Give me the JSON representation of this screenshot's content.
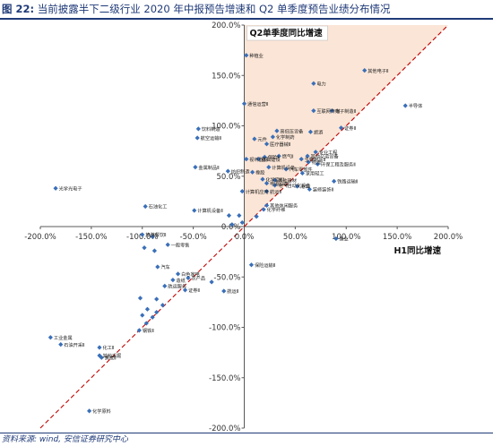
{
  "figure": {
    "number": "图 22:",
    "title": "当前披露半下二级行业 2020 年中报预告增速和 Q2 单季度预告业绩分布情况"
  },
  "source": "资料来源: wind, 安信证券研究中心",
  "colors": {
    "title": "#1f3a78",
    "points": "#3a6fb8",
    "diagonal": "#c00000",
    "shade": "#fbe5d6",
    "axis": "#595959",
    "tick_text": "#333333"
  },
  "chart_data": {
    "type": "scatter",
    "xlabel": "H1同比增速",
    "ylabel": "Q2单季度同比增速",
    "xlim": [
      -2.0,
      2.0
    ],
    "ylim": [
      -2.0,
      2.0
    ],
    "x_ticks": [
      "-200.0%",
      "-150.0%",
      "-100.0%",
      "-50.0%",
      "0.0%",
      "50.0%",
      "100.0%",
      "150.0%",
      "200.0%"
    ],
    "y_ticks": [
      "200.0%",
      "150.0%",
      "100.0%",
      "50.0%",
      "0.0%",
      "-50.0%",
      "-100.0%",
      "-150.0%",
      "-200.0%"
    ],
    "grid": false,
    "diagonal_reference_line": true,
    "shaded_region": "upper-left of diagonal, x ≥ 0",
    "series": [
      {
        "points": [
          {
            "x": 0.02,
            "y": 1.7,
            "label": "种植业"
          },
          {
            "x": 1.18,
            "y": 1.55,
            "label": "其他电子Ⅱ"
          },
          {
            "x": 0.68,
            "y": 1.42,
            "label": "电力"
          },
          {
            "x": 1.58,
            "y": 1.2,
            "label": "半导体"
          },
          {
            "x": 0.0,
            "y": 1.22,
            "label": "通信运营Ⅱ"
          },
          {
            "x": 0.68,
            "y": 1.15,
            "label": "互联网传媒"
          },
          {
            "x": 0.86,
            "y": 1.15,
            "label": "电子制造Ⅱ"
          },
          {
            "x": 0.95,
            "y": 0.98,
            "label": "证券Ⅱ"
          },
          {
            "x": -0.45,
            "y": 0.97,
            "label": "饮料制造"
          },
          {
            "x": 0.32,
            "y": 0.95,
            "label": "高低压设备"
          },
          {
            "x": 0.65,
            "y": 0.94,
            "label": "旅游"
          },
          {
            "x": 0.28,
            "y": 0.89,
            "label": "化学制药"
          },
          {
            "x": -0.46,
            "y": 0.88,
            "label": "航空运输Ⅱ"
          },
          {
            "x": 0.1,
            "y": 0.87,
            "label": "元件"
          },
          {
            "x": 0.22,
            "y": 0.82,
            "label": "医疗器械Ⅱ"
          },
          {
            "x": 0.7,
            "y": 0.74,
            "label": "专业工程"
          },
          {
            "x": 0.34,
            "y": 0.7,
            "label": "燃气Ⅱ"
          },
          {
            "x": 0.62,
            "y": 0.7,
            "label": "其他交运设备"
          },
          {
            "x": 0.2,
            "y": 0.69,
            "label": "保险Ⅱ"
          },
          {
            "x": 0.02,
            "y": 0.67,
            "label": "视听器材"
          },
          {
            "x": 0.14,
            "y": 0.67,
            "label": "基础建设"
          },
          {
            "x": 0.56,
            "y": 0.67,
            "label": "生物制品Ⅱ"
          },
          {
            "x": 0.63,
            "y": 0.64,
            "label": "物流"
          },
          {
            "x": 0.72,
            "y": 0.62,
            "label": "环保工程及服务Ⅱ"
          },
          {
            "x": 0.24,
            "y": 0.59,
            "label": "计算机设备"
          },
          {
            "x": -0.48,
            "y": 0.59,
            "label": "金属制品Ⅱ"
          },
          {
            "x": 0.41,
            "y": 0.57,
            "label": "汽车零部件"
          },
          {
            "x": 0.57,
            "y": 0.53,
            "label": "家用轻工"
          },
          {
            "x": -0.16,
            "y": 0.55,
            "label": "纺织制造"
          },
          {
            "x": 0.08,
            "y": 0.54,
            "label": "橡胶"
          },
          {
            "x": 0.18,
            "y": 0.47,
            "label": "化学原料"
          },
          {
            "x": 0.3,
            "y": 0.46,
            "label": "其他建材"
          },
          {
            "x": 0.88,
            "y": 0.45,
            "label": "铁路运输Ⅱ"
          },
          {
            "x": 0.22,
            "y": 0.43,
            "label": "电源设备"
          },
          {
            "x": 0.3,
            "y": 0.41,
            "label": "电气自动化设备"
          },
          {
            "x": 0.52,
            "y": 0.4,
            "label": "港口"
          },
          {
            "x": 0.64,
            "y": 0.37,
            "label": "装修装饰Ⅱ"
          },
          {
            "x": 0.22,
            "y": 0.35,
            "label": "航运Ⅱ"
          },
          {
            "x": -0.02,
            "y": 0.35,
            "label": "计算机应用"
          },
          {
            "x": 0.22,
            "y": 0.21,
            "label": "其他休闲服务"
          },
          {
            "x": 0.19,
            "y": 0.17,
            "label": "化学纤维"
          },
          {
            "x": -1.85,
            "y": 0.38,
            "label": "光学光电子"
          },
          {
            "x": -0.97,
            "y": 0.2,
            "label": "石油化工"
          },
          {
            "x": -0.49,
            "y": 0.16,
            "label": "计算机设备Ⅱ"
          },
          {
            "x": -0.15,
            "y": 0.11
          },
          {
            "x": -0.05,
            "y": 0.11
          },
          {
            "x": 0.12,
            "y": 0.1
          },
          {
            "x": -0.02,
            "y": 0.04
          },
          {
            "x": -0.12,
            "y": 0.02
          },
          {
            "x": -1.0,
            "y": -0.08,
            "label": "旅游餐饮Ⅱ"
          },
          {
            "x": -0.9,
            "y": -0.1
          },
          {
            "x": -0.75,
            "y": -0.18,
            "label": "一般零售"
          },
          {
            "x": 0.9,
            "y": -0.12,
            "label": "渔业"
          },
          {
            "x": -0.98,
            "y": -0.21
          },
          {
            "x": -0.88,
            "y": -0.24
          },
          {
            "x": 0.07,
            "y": -0.38,
            "label": "保险运输Ⅱ"
          },
          {
            "x": -0.85,
            "y": -0.4,
            "label": "汽车"
          },
          {
            "x": -0.65,
            "y": -0.47,
            "label": "白色家电"
          },
          {
            "x": -0.55,
            "y": -0.51,
            "label": "农产品"
          },
          {
            "x": -0.7,
            "y": -0.53,
            "label": "造纸"
          },
          {
            "x": -0.32,
            "y": -0.55
          },
          {
            "x": -0.78,
            "y": -0.59,
            "label": "航运服务"
          },
          {
            "x": -0.58,
            "y": -0.63,
            "label": "证券Ⅱ"
          },
          {
            "x": -0.2,
            "y": -0.64,
            "label": "航运Ⅱ"
          },
          {
            "x": -1.02,
            "y": -0.71
          },
          {
            "x": -0.86,
            "y": -0.72
          },
          {
            "x": -0.8,
            "y": -0.78
          },
          {
            "x": -0.95,
            "y": -0.82
          },
          {
            "x": -0.86,
            "y": -0.85
          },
          {
            "x": -0.9,
            "y": -0.9
          },
          {
            "x": -1.0,
            "y": -0.88
          },
          {
            "x": -0.96,
            "y": -0.96
          },
          {
            "x": -1.03,
            "y": -1.03,
            "label": "钢铁Ⅱ"
          },
          {
            "x": -1.9,
            "y": -1.1,
            "label": "工业金属"
          },
          {
            "x": -1.8,
            "y": -1.17,
            "label": "石油开采Ⅱ"
          },
          {
            "x": -1.42,
            "y": -1.2,
            "label": "化工Ⅱ"
          },
          {
            "x": -1.42,
            "y": -1.28,
            "label": "其他采掘"
          },
          {
            "x": -1.4,
            "y": -1.3,
            "label": "焦炭Ⅱ"
          },
          {
            "x": -1.52,
            "y": -1.83,
            "label": "化学原料"
          }
        ]
      }
    ]
  }
}
